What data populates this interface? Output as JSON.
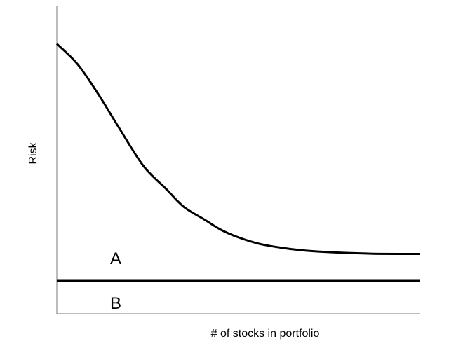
{
  "chart_data": {
    "type": "line",
    "xlabel": "# of stocks in portfolio",
    "ylabel": "Risk",
    "series": [
      {
        "x": [
          1,
          1.3,
          1.7,
          2.2,
          3,
          4,
          5,
          6.5,
          8,
          10,
          13,
          17,
          22,
          30,
          40,
          55,
          75,
          100
        ],
        "y": [
          1.0,
          0.92,
          0.8,
          0.67,
          0.52,
          0.43,
          0.36,
          0.31,
          0.27,
          0.24,
          0.215,
          0.2,
          0.19,
          0.183,
          0.179,
          0.176,
          0.175,
          0.175
        ]
      },
      {
        "x": [
          1,
          100
        ],
        "y": [
          0.07,
          0.07
        ]
      }
    ],
    "annotations": [
      "A",
      "B"
    ],
    "xlim": [
      1,
      100
    ],
    "ylim": [
      -0.06,
      1.15
    ],
    "grid": false,
    "legend": "none"
  }
}
